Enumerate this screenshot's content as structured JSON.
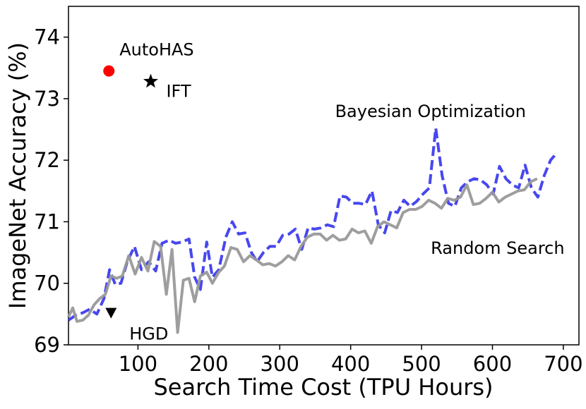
{
  "chart_data": {
    "type": "line",
    "xlabel": "Search Time Cost (TPU Hours)",
    "ylabel": "ImageNet Accuracy (%)",
    "xlim": [
      2,
      722
    ],
    "ylim": [
      69,
      74.5
    ],
    "xticks": [
      100,
      200,
      300,
      400,
      500,
      600,
      700
    ],
    "yticks": [
      69,
      70,
      71,
      72,
      73,
      74
    ],
    "grid": false,
    "series": [
      {
        "style": "dashed",
        "color": "#3333ee",
        "points": [
          [
            2,
            69.4
          ],
          [
            12,
            69.48
          ],
          [
            22,
            69.52
          ],
          [
            32,
            69.58
          ],
          [
            42,
            69.5
          ],
          [
            52,
            69.75
          ],
          [
            60,
            70.22
          ],
          [
            68,
            69.98
          ],
          [
            76,
            70.0
          ],
          [
            85,
            70.35
          ],
          [
            95,
            70.6
          ],
          [
            105,
            70.22
          ],
          [
            115,
            70.35
          ],
          [
            125,
            70.2
          ],
          [
            134,
            70.65
          ],
          [
            144,
            70.7
          ],
          [
            153,
            70.65
          ],
          [
            162,
            70.67
          ],
          [
            172,
            70.72
          ],
          [
            180,
            70.1
          ],
          [
            188,
            69.9
          ],
          [
            197,
            70.67
          ],
          [
            205,
            70.1
          ],
          [
            214,
            70.22
          ],
          [
            224,
            70.75
          ],
          [
            233,
            71.0
          ],
          [
            242,
            70.8
          ],
          [
            251,
            70.82
          ],
          [
            260,
            70.5
          ],
          [
            268,
            70.35
          ],
          [
            277,
            70.5
          ],
          [
            286,
            70.6
          ],
          [
            295,
            70.6
          ],
          [
            304,
            70.78
          ],
          [
            313,
            70.8
          ],
          [
            322,
            70.88
          ],
          [
            331,
            70.55
          ],
          [
            340,
            70.9
          ],
          [
            349,
            70.88
          ],
          [
            358,
            70.9
          ],
          [
            367,
            70.95
          ],
          [
            376,
            70.92
          ],
          [
            385,
            71.42
          ],
          [
            394,
            71.4
          ],
          [
            403,
            71.3
          ],
          [
            412,
            71.3
          ],
          [
            421,
            71.28
          ],
          [
            430,
            71.5
          ],
          [
            439,
            70.95
          ],
          [
            448,
            70.82
          ],
          [
            457,
            71.18
          ],
          [
            466,
            71.15
          ],
          [
            475,
            71.35
          ],
          [
            484,
            71.25
          ],
          [
            493,
            71.33
          ],
          [
            502,
            71.45
          ],
          [
            511,
            71.55
          ],
          [
            520,
            72.52
          ],
          [
            529,
            71.75
          ],
          [
            538,
            71.3
          ],
          [
            547,
            71.25
          ],
          [
            556,
            71.55
          ],
          [
            565,
            71.65
          ],
          [
            574,
            71.7
          ],
          [
            583,
            71.68
          ],
          [
            592,
            71.6
          ],
          [
            601,
            71.45
          ],
          [
            610,
            71.9
          ],
          [
            619,
            71.7
          ],
          [
            628,
            71.6
          ],
          [
            637,
            71.55
          ],
          [
            646,
            71.92
          ],
          [
            655,
            71.55
          ],
          [
            664,
            71.4
          ],
          [
            673,
            71.75
          ],
          [
            682,
            72.0
          ],
          [
            691,
            72.12
          ]
        ]
      },
      {
        "style": "solid",
        "color": "#999999",
        "points": [
          [
            2,
            69.45
          ],
          [
            8,
            69.6
          ],
          [
            14,
            69.38
          ],
          [
            22,
            69.4
          ],
          [
            30,
            69.48
          ],
          [
            38,
            69.65
          ],
          [
            46,
            69.75
          ],
          [
            54,
            69.82
          ],
          [
            62,
            70.12
          ],
          [
            70,
            70.08
          ],
          [
            78,
            70.12
          ],
          [
            87,
            70.45
          ],
          [
            96,
            70.15
          ],
          [
            105,
            70.42
          ],
          [
            114,
            70.2
          ],
          [
            123,
            70.68
          ],
          [
            132,
            70.6
          ],
          [
            140,
            69.82
          ],
          [
            148,
            70.55
          ],
          [
            156,
            69.2
          ],
          [
            164,
            70.05
          ],
          [
            172,
            70.08
          ],
          [
            180,
            69.7
          ],
          [
            188,
            70.12
          ],
          [
            197,
            70.18
          ],
          [
            205,
            70.0
          ],
          [
            214,
            70.18
          ],
          [
            222,
            70.28
          ],
          [
            231,
            70.58
          ],
          [
            240,
            70.55
          ],
          [
            249,
            70.35
          ],
          [
            258,
            70.45
          ],
          [
            267,
            70.38
          ],
          [
            276,
            70.3
          ],
          [
            285,
            70.32
          ],
          [
            294,
            70.28
          ],
          [
            303,
            70.35
          ],
          [
            312,
            70.45
          ],
          [
            321,
            70.38
          ],
          [
            330,
            70.6
          ],
          [
            339,
            70.75
          ],
          [
            348,
            70.8
          ],
          [
            357,
            70.8
          ],
          [
            366,
            70.7
          ],
          [
            375,
            70.78
          ],
          [
            384,
            70.7
          ],
          [
            393,
            70.72
          ],
          [
            402,
            70.88
          ],
          [
            411,
            70.82
          ],
          [
            420,
            70.85
          ],
          [
            429,
            70.65
          ],
          [
            438,
            70.92
          ],
          [
            447,
            71.0
          ],
          [
            456,
            70.95
          ],
          [
            465,
            70.9
          ],
          [
            474,
            71.15
          ],
          [
            483,
            71.2
          ],
          [
            492,
            71.2
          ],
          [
            501,
            71.25
          ],
          [
            510,
            71.35
          ],
          [
            519,
            71.3
          ],
          [
            528,
            71.22
          ],
          [
            537,
            71.38
          ],
          [
            546,
            71.35
          ],
          [
            555,
            71.4
          ],
          [
            564,
            71.6
          ],
          [
            573,
            71.28
          ],
          [
            582,
            71.3
          ],
          [
            591,
            71.38
          ],
          [
            600,
            71.48
          ],
          [
            609,
            71.32
          ],
          [
            618,
            71.4
          ],
          [
            627,
            71.45
          ],
          [
            636,
            71.5
          ],
          [
            645,
            71.52
          ],
          [
            654,
            71.65
          ],
          [
            663,
            71.7
          ]
        ]
      }
    ],
    "markers": [
      {
        "label": "AutoHAS",
        "shape": "circle",
        "color": "#ff0000",
        "x": 59,
        "y": 73.45
      },
      {
        "label": "IFT",
        "shape": "star",
        "color": "#000000",
        "x": 118,
        "y": 73.28
      },
      {
        "label": "HGD",
        "shape": "triangle-down",
        "color": "#000000",
        "x": 62,
        "y": 69.52
      }
    ],
    "annotations": [
      {
        "text": "Bayesian Optimization",
        "x": 378,
        "y": 72.7
      },
      {
        "text": "Random Search",
        "x": 513,
        "y": 70.48
      }
    ]
  }
}
